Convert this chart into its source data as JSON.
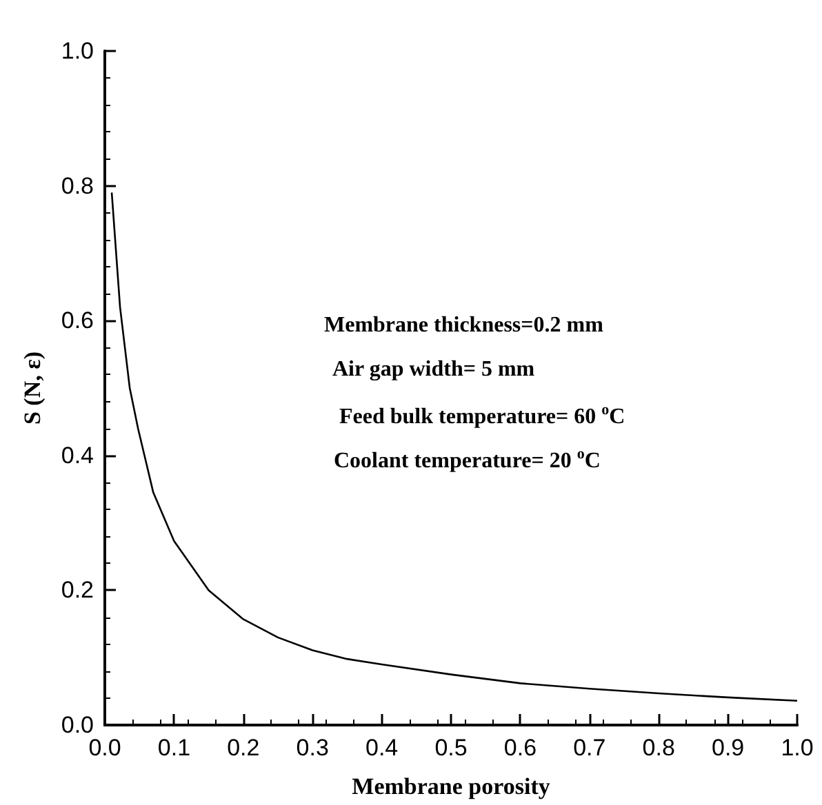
{
  "chart_data": {
    "type": "line",
    "xlabel": "Membrane porosity",
    "ylabel": "S (N, ε)",
    "annotations": [
      "Membrane thickness=0.2 mm",
      "Air gap width= 5 mm",
      "Feed bulk temperature= 60 $^{o}$C",
      "Coolant temperature= 20 $^{o}$C"
    ],
    "x": [
      0.01,
      0.022,
      0.036,
      0.048,
      0.07,
      0.1,
      0.15,
      0.2,
      0.25,
      0.3,
      0.35,
      0.4,
      0.5,
      0.6,
      0.7,
      0.8,
      0.9,
      1.0
    ],
    "series": [
      {
        "color": "#000000",
        "values": [
          0.79,
          0.62,
          0.5,
          0.44,
          0.345,
          0.273,
          0.2,
          0.157,
          0.13,
          0.111,
          0.098,
          0.09,
          0.075,
          0.062,
          0.054,
          0.047,
          0.041,
          0.036
        ]
      }
    ],
    "xlim": [
      0,
      1
    ],
    "ylim": [
      0,
      1
    ],
    "xticks": [
      {
        "value": 0,
        "label": "0.0"
      },
      {
        "value": 0.1,
        "label": "0.1"
      },
      {
        "value": 0.2,
        "label": "0.2"
      },
      {
        "value": 0.3,
        "label": "0.3"
      },
      {
        "value": 0.4,
        "label": "0.4"
      },
      {
        "value": 0.5,
        "label": "0.5"
      },
      {
        "value": 0.6,
        "label": "0.6"
      },
      {
        "value": 0.7,
        "label": "0.7"
      },
      {
        "value": 0.8,
        "label": "0.8"
      },
      {
        "value": 0.9,
        "label": "0.9"
      },
      {
        "value": 1,
        "label": "1.0"
      }
    ],
    "yticks": [
      {
        "value": 0,
        "label": "0.0"
      },
      {
        "value": 0.2,
        "label": "0.2"
      },
      {
        "value": 0.4,
        "label": "0.4"
      },
      {
        "value": 0.6,
        "label": "0.6"
      },
      {
        "value": 0.8,
        "label": "0.8"
      },
      {
        "value": 1,
        "label": "1.0"
      }
    ],
    "grid": false,
    "marker": "none",
    "line_style": "solid"
  }
}
